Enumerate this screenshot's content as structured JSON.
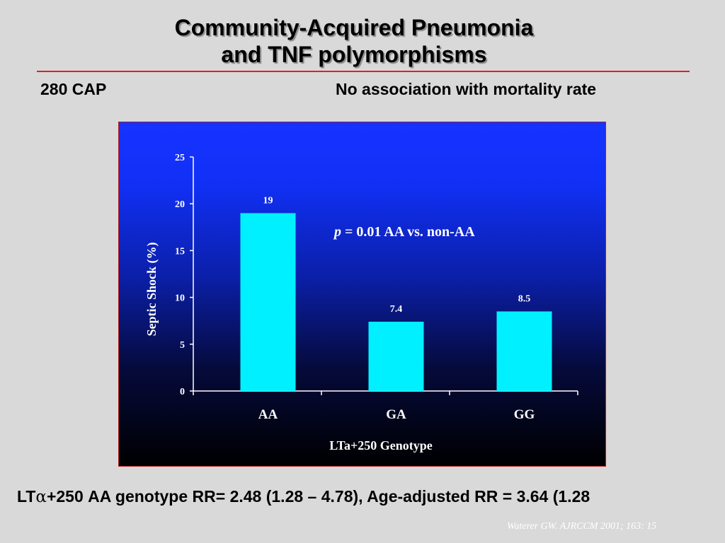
{
  "slide": {
    "title_line1": "Community-Acquired Pneumonia",
    "title_line2": "and TNF polymorphisms",
    "subtitle_left": "280 CAP",
    "subtitle_right": "No association with mortality rate",
    "footer_prefix": "LT",
    "footer_symbol": "α",
    "footer_rest": "+250 AA genotype RR= 2.48 (1.28 – 4.78), Age-adjusted RR = 3.64 (1.28",
    "citation": "Waterer GW. AJRCCM 2001; 163: 15"
  },
  "colors": {
    "bar": "#00f0ff",
    "text_on_chart": "#ffffff",
    "rule": "#e32020"
  },
  "chart_data": {
    "type": "bar",
    "categories": [
      "AA",
      "GA",
      "GG"
    ],
    "values": [
      19,
      7.4,
      8.5
    ],
    "data_labels": [
      "19",
      "7.4",
      "8.5"
    ],
    "ylabel": "Septic Shock (%)",
    "xlabel": "LTa+250 Genotype",
    "ylim": [
      0,
      25
    ],
    "yticks": [
      0,
      5,
      10,
      15,
      20,
      25
    ],
    "annotation_italic": "p",
    "annotation_rest": " = 0.01 AA vs. non-AA",
    "grid": false
  }
}
